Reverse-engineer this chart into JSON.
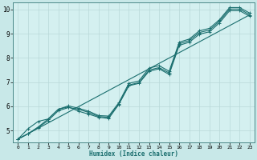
{
  "xlabel": "Humidex (Indice chaleur)",
  "xlim": [
    -0.5,
    23.5
  ],
  "ylim": [
    4.5,
    10.3
  ],
  "xticks": [
    0,
    1,
    2,
    3,
    4,
    5,
    6,
    7,
    8,
    9,
    10,
    11,
    12,
    13,
    14,
    15,
    16,
    17,
    18,
    19,
    20,
    21,
    22,
    23
  ],
  "yticks": [
    5,
    6,
    7,
    8,
    9,
    10
  ],
  "bg_color": "#c8e8e8",
  "plot_bg_color": "#d4f0f0",
  "line_color": "#1a6e6e",
  "grid_color": "#b8d8d8",
  "lines": [
    {
      "x": [
        0,
        1,
        2,
        3,
        4,
        5,
        6,
        7,
        8,
        9,
        10,
        11,
        12,
        13,
        14,
        15,
        16,
        17,
        18,
        19,
        20,
        21,
        22,
        23
      ],
      "y": [
        4.65,
        4.87,
        5.12,
        5.42,
        5.82,
        5.95,
        5.88,
        5.75,
        5.58,
        5.55,
        6.1,
        6.88,
        6.98,
        7.5,
        7.6,
        7.38,
        8.58,
        8.72,
        9.05,
        9.15,
        9.52,
        10.02,
        10.02,
        9.78
      ],
      "has_marker": true
    },
    {
      "x": [
        0,
        1,
        2,
        3,
        4,
        5,
        6,
        7,
        8,
        9,
        10,
        11,
        12,
        13,
        14,
        15,
        16,
        17,
        18,
        19,
        20,
        21,
        22,
        23
      ],
      "y": [
        4.65,
        4.87,
        5.15,
        5.48,
        5.88,
        6.02,
        5.92,
        5.8,
        5.62,
        5.6,
        6.15,
        6.95,
        7.05,
        7.58,
        7.68,
        7.45,
        8.65,
        8.78,
        9.12,
        9.22,
        9.58,
        10.08,
        10.08,
        9.85
      ],
      "has_marker": true
    },
    {
      "x": [
        0,
        1,
        2,
        3,
        4,
        5,
        6,
        7,
        8,
        9,
        10,
        11,
        12,
        13,
        14,
        15,
        16,
        17,
        18,
        19,
        20,
        21,
        22,
        23
      ],
      "y": [
        4.65,
        5.08,
        5.38,
        5.48,
        5.88,
        5.98,
        5.8,
        5.68,
        5.55,
        5.5,
        6.08,
        6.85,
        6.95,
        7.45,
        7.55,
        7.32,
        8.52,
        8.65,
        8.98,
        9.08,
        9.45,
        9.95,
        9.95,
        9.72
      ],
      "has_marker": true
    },
    {
      "x": [
        0,
        23
      ],
      "y": [
        4.65,
        9.78
      ],
      "has_marker": false
    }
  ],
  "marker": "+",
  "markersize": 3,
  "linewidth": 0.8
}
